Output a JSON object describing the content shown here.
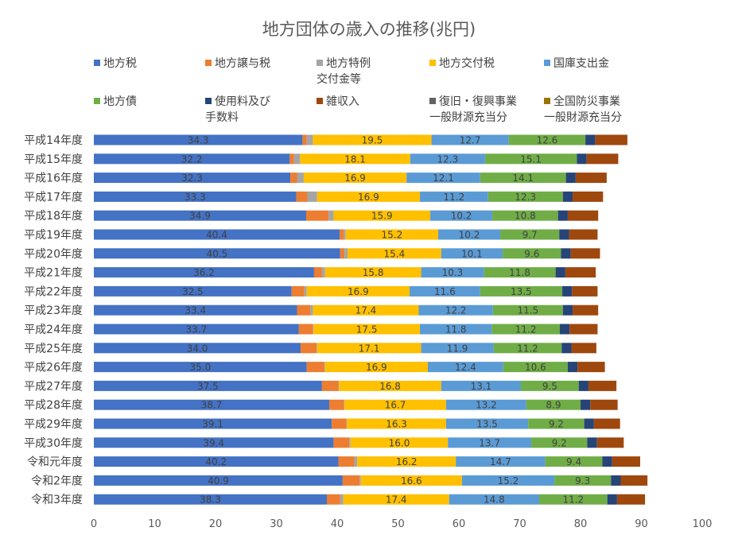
{
  "chart_data": {
    "type": "bar",
    "orientation": "horizontal",
    "stacked": true,
    "title": "地方団体の歳入の推移(兆円)",
    "xlim": [
      0,
      100
    ],
    "x_ticks": [
      "0",
      "10",
      "20",
      "30",
      "40",
      "50",
      "60",
      "70",
      "80",
      "90",
      "100"
    ],
    "grid": false,
    "legend_position": "top",
    "categories": [
      "平成14年度",
      "平成15年度",
      "平成16年度",
      "平成17年度",
      "平成18年度",
      "平成19年度",
      "平成20年度",
      "平成21年度",
      "平成22年度",
      "平成23年度",
      "平成24年度",
      "平成25年度",
      "平成26年度",
      "平成27年度",
      "平成28年度",
      "平成29年度",
      "平成30年度",
      "令和元年度",
      "令和2年度",
      "令和3年度"
    ],
    "series": [
      {
        "name": "地方税",
        "legend_lines": [
          "地方税"
        ],
        "color": "#4472C4",
        "label_values": true,
        "values": [
          34.3,
          32.2,
          32.3,
          33.3,
          34.9,
          40.4,
          40.5,
          36.2,
          32.5,
          33.4,
          33.7,
          34.0,
          35.0,
          37.5,
          38.7,
          39.1,
          39.4,
          40.2,
          40.9,
          38.3
        ]
      },
      {
        "name": "地方譲与税",
        "legend_lines": [
          "地方譲与税"
        ],
        "color": "#ED7D31",
        "label_values": false,
        "values": [
          0.7,
          0.7,
          1.1,
          1.8,
          3.7,
          0.7,
          0.7,
          1.3,
          2.1,
          2.2,
          2.3,
          2.6,
          2.9,
          2.7,
          2.4,
          2.4,
          2.6,
          2.6,
          2.8,
          2.2
        ]
      },
      {
        "name": "地方特例交付金等",
        "legend_lines": [
          "地方特例",
          "交付金等"
        ],
        "color": "#A5A5A5",
        "label_values": false,
        "values": [
          1.0,
          1.0,
          1.1,
          1.6,
          0.8,
          0.3,
          0.5,
          0.5,
          0.4,
          0.4,
          0.1,
          0.1,
          0.1,
          0.1,
          0.1,
          0.1,
          0.2,
          0.5,
          0.2,
          0.5
        ]
      },
      {
        "name": "地方交付税",
        "legend_lines": [
          "地方交付税"
        ],
        "color": "#FFC000",
        "label_values": true,
        "values": [
          19.5,
          18.1,
          16.9,
          16.9,
          15.9,
          15.2,
          15.4,
          15.8,
          16.9,
          17.4,
          17.5,
          17.1,
          16.9,
          16.8,
          16.7,
          16.3,
          16.0,
          16.2,
          16.6,
          17.4
        ]
      },
      {
        "name": "国庫支出金",
        "legend_lines": [
          "国庫支出金"
        ],
        "color": "#5B9BD5",
        "label_values": true,
        "values": [
          12.7,
          12.3,
          12.1,
          11.2,
          10.2,
          10.2,
          10.1,
          10.3,
          11.6,
          12.2,
          11.8,
          11.9,
          12.4,
          13.1,
          13.2,
          13.5,
          13.7,
          14.7,
          15.2,
          14.8
        ]
      },
      {
        "name": "地方債",
        "legend_lines": [
          "地方債"
        ],
        "color": "#70AD47",
        "label_values": true,
        "values": [
          12.6,
          15.1,
          14.1,
          12.3,
          10.8,
          9.7,
          9.6,
          11.8,
          13.5,
          11.5,
          11.2,
          11.2,
          10.6,
          9.5,
          8.9,
          9.2,
          9.2,
          9.4,
          9.3,
          11.2
        ]
      },
      {
        "name": "使用料及び手数料",
        "legend_lines": [
          "使用料及び",
          "手数料"
        ],
        "color": "#264478",
        "label_values": false,
        "values": [
          1.6,
          1.6,
          1.6,
          1.6,
          1.6,
          1.6,
          1.6,
          1.6,
          1.6,
          1.6,
          1.6,
          1.6,
          1.6,
          1.6,
          1.6,
          1.6,
          1.6,
          1.6,
          1.6,
          1.6
        ]
      },
      {
        "name": "雑収入",
        "legend_lines": [
          "雑収入"
        ],
        "color": "#9E480E",
        "label_values": false,
        "values": [
          5.3,
          5.2,
          5.1,
          5.0,
          5.0,
          4.7,
          4.8,
          5.0,
          4.2,
          4.2,
          4.6,
          4.1,
          4.5,
          4.6,
          4.5,
          4.3,
          4.4,
          4.6,
          4.4,
          4.6
        ]
      },
      {
        "name": "復旧・復興事業一般財源充当分",
        "legend_lines": [
          "復旧・復興事業",
          "一般財源充当分"
        ],
        "color": "#636363",
        "label_values": false,
        "values": [
          0,
          0,
          0,
          0,
          0,
          0,
          0,
          0,
          0,
          0,
          0,
          0,
          0,
          0,
          0,
          0,
          0,
          0,
          0,
          0
        ]
      },
      {
        "name": "全国防災事業一般財源充当分",
        "legend_lines": [
          "全国防災事業",
          "一般財源充当分"
        ],
        "color": "#997300",
        "label_values": false,
        "values": [
          0,
          0,
          0,
          0,
          0,
          0,
          0,
          0,
          0,
          0,
          0,
          0,
          0,
          0,
          0,
          0,
          0,
          0,
          0,
          0
        ]
      }
    ]
  }
}
